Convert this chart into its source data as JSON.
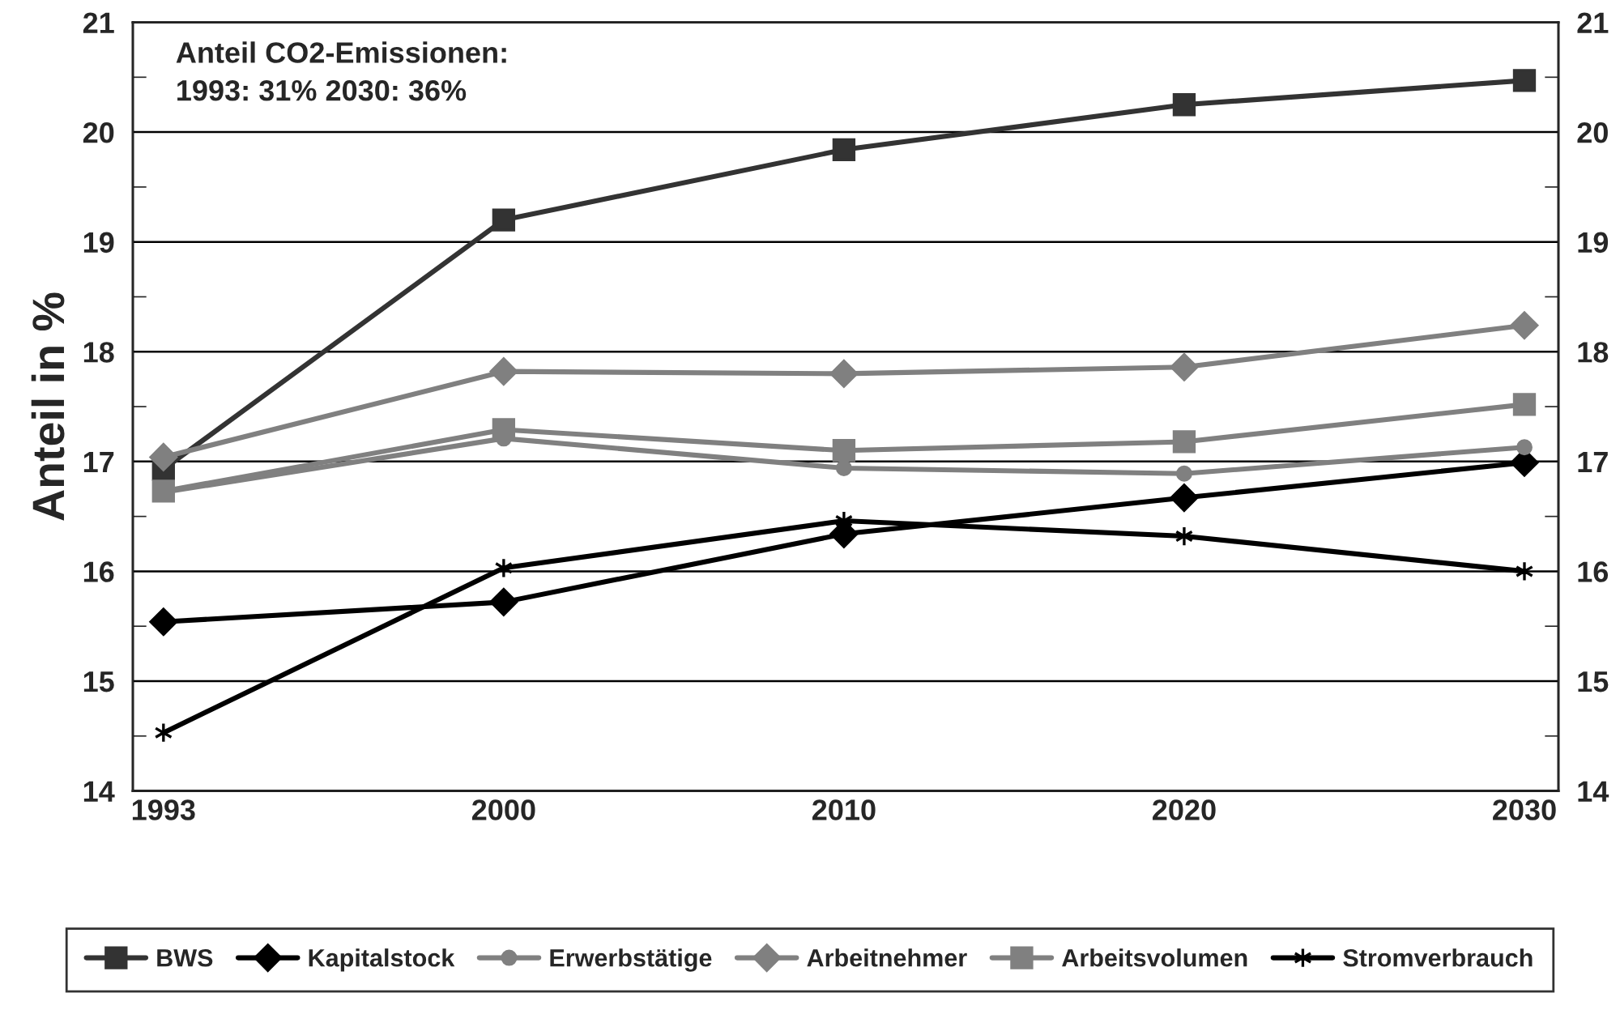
{
  "chart_data": {
    "type": "line",
    "ylabel": "Anteil in %",
    "annotations": [
      "Anteil CO2-Emissionen:\n1993: 31% 2030: 36%"
    ],
    "categories": [
      "1993",
      "2000",
      "2010",
      "2020",
      "2030"
    ],
    "series": [
      {
        "name": "BWS",
        "color": "#333333",
        "marker": "square",
        "values": [
          16.93,
          19.2,
          19.84,
          20.25,
          20.47
        ]
      },
      {
        "name": "Kapitalstock",
        "color": "#000000",
        "marker": "diamond",
        "values": [
          15.54,
          15.72,
          16.34,
          16.67,
          16.99
        ]
      },
      {
        "name": "Erwerbstätige",
        "color": "#808080",
        "marker": "circle",
        "values": [
          16.72,
          17.21,
          16.94,
          16.89,
          17.13
        ]
      },
      {
        "name": "Arbeitnehmer",
        "color": "#808080",
        "marker": "diamond",
        "values": [
          17.04,
          17.82,
          17.8,
          17.86,
          18.24
        ]
      },
      {
        "name": "Arbeitsvolumen",
        "color": "#808080",
        "marker": "square",
        "values": [
          16.73,
          17.29,
          17.1,
          17.18,
          17.52
        ]
      },
      {
        "name": "Stromverbrauch",
        "color": "#000000",
        "marker": "cross",
        "values": [
          14.53,
          16.03,
          16.46,
          16.32,
          16.0
        ]
      }
    ],
    "ylim": [
      14,
      21
    ],
    "yticks": [
      14,
      15,
      16,
      17,
      18,
      19,
      20,
      21
    ],
    "y2lim": [
      14,
      21
    ],
    "y2ticks": [
      14,
      15,
      16,
      17,
      18,
      19,
      20,
      21
    ],
    "grid": "y",
    "legend": "bottom",
    "line_style": "solid"
  }
}
